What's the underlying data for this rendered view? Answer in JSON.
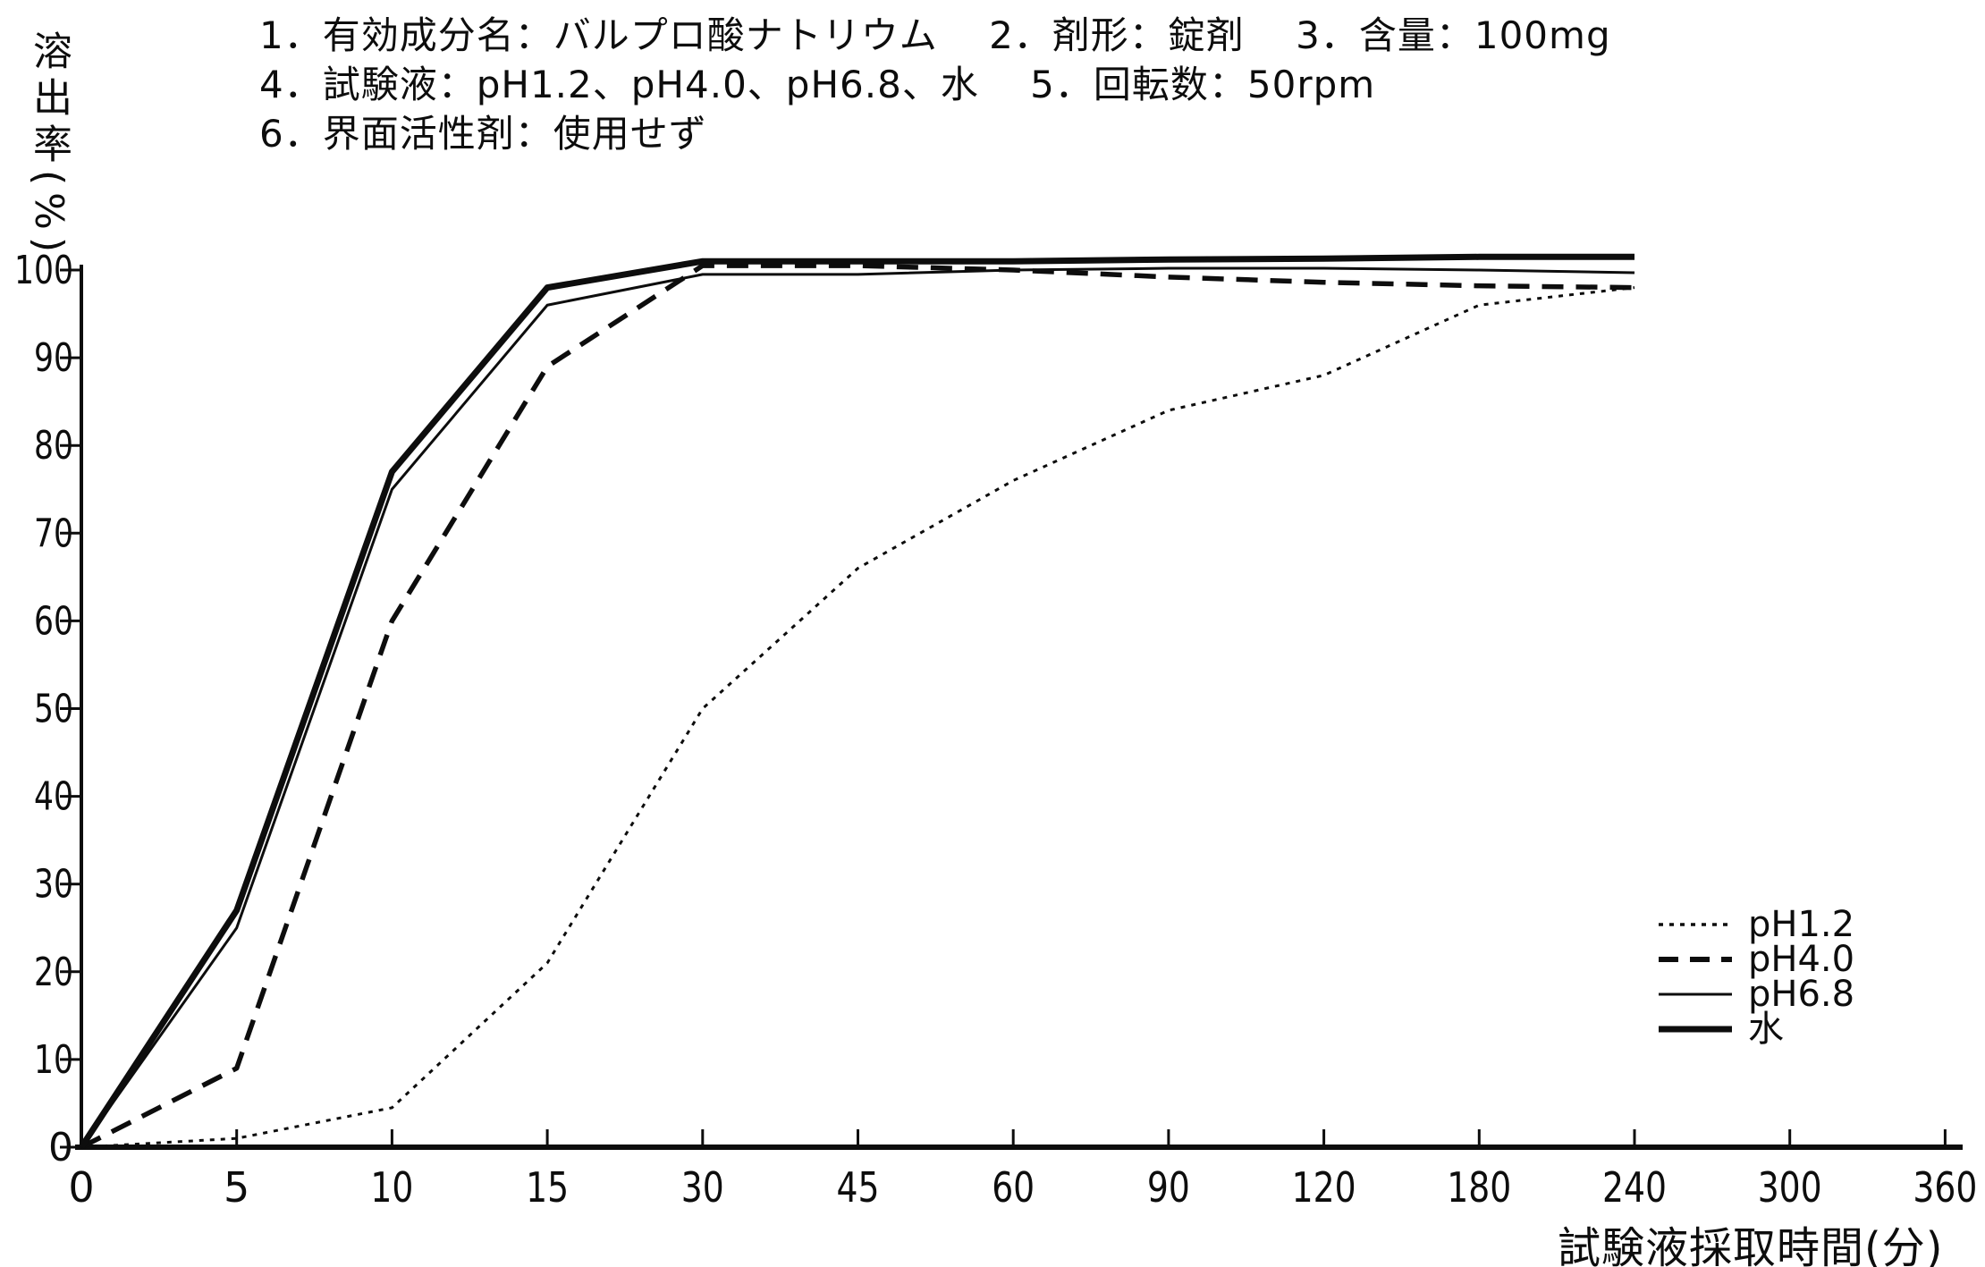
{
  "header": {
    "line1": "1．有効成分名：バルプロ酸ナトリウム　 2．剤形：錠剤　 3．含量：100mg",
    "line2": "4．試験液：pH1.2、pH4.0、pH6.8、水　 5．回転数：50rpm",
    "line3": "6．界面活性剤：使用せず"
  },
  "chart_data": {
    "type": "line",
    "title": "",
    "xlabel": "試験液採取時間(分)",
    "ylabel": "溶出率(%)",
    "x_tick_labels": [
      "0",
      "5",
      "10",
      "15",
      "30",
      "45",
      "60",
      "90",
      "120",
      "180",
      "240",
      "300",
      "360"
    ],
    "y_tick_labels": [
      "0",
      "10",
      "20",
      "30",
      "40",
      "50",
      "60",
      "70",
      "80",
      "90",
      "100"
    ],
    "ylim": [
      0,
      105
    ],
    "grid": false,
    "x_axis_note": "non-linear time axis: tick categories equally spaced; curves plotted only up to 240 min",
    "categories_min": [
      0,
      5,
      10,
      15,
      30,
      45,
      60,
      90,
      120,
      180,
      240
    ],
    "series": [
      {
        "name": "pH1.2",
        "line_style": "dotted",
        "values": [
          0,
          1,
          4.5,
          21,
          50,
          66,
          76,
          84,
          88,
          96,
          98
        ]
      },
      {
        "name": "pH4.0",
        "line_style": "dashed",
        "values": [
          0,
          9,
          60,
          89,
          100.5,
          100.5,
          100,
          99.2,
          98.6,
          98.2,
          98
        ]
      },
      {
        "name": "pH6.8",
        "line_style": "solid-thin",
        "values": [
          0,
          25,
          75,
          96,
          99.5,
          99.5,
          100,
          100.2,
          100.2,
          100,
          99.7
        ]
      },
      {
        "name": "水",
        "line_style": "solid-thick",
        "values": [
          0,
          27,
          77,
          98,
          101,
          101,
          101,
          101.2,
          101.3,
          101.5,
          101.5
        ]
      }
    ],
    "legend_position": "right-lower",
    "ink_color": "#0d0d0d",
    "paper_color": "#ffffff"
  }
}
